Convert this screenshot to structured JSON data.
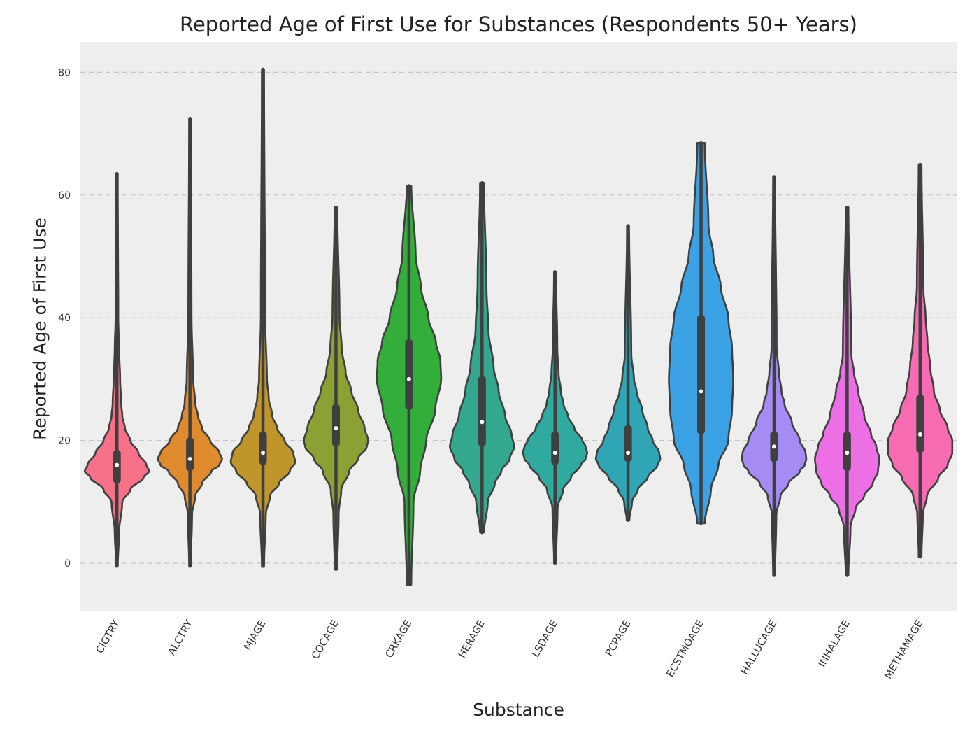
{
  "chart_data": {
    "type": "violin",
    "title": "Reported Age of First Use for Substances (Respondents 50+ Years)",
    "xlabel": "Substance",
    "ylabel": "Reported Age of First Use",
    "ylim": [
      -8,
      87
    ],
    "yticks": [
      0,
      20,
      40,
      60,
      80
    ],
    "grid": "horizontal-dashed",
    "categories": [
      "CIGTRY",
      "ALCTRY",
      "MJAGE",
      "COCAGE",
      "CRKAGE",
      "HERAGE",
      "LSDAGE",
      "PCPAGE",
      "ECSTMOAGE",
      "HALLUCAGE",
      "INHALAGE",
      "METHAMAGE"
    ],
    "colors": [
      "#f77189",
      "#e08a2e",
      "#c0962c",
      "#8ba133",
      "#34ae3a",
      "#33a88e",
      "#30a99f",
      "#30a5b5",
      "#3ba2e6",
      "#a48cf4",
      "#ec6fe6",
      "#f66bb2"
    ],
    "series": [
      {
        "min": -0.5,
        "q1": 13,
        "median": 16,
        "q3": 18.5,
        "max": 63.5
      },
      {
        "min": -0.5,
        "q1": 15,
        "median": 17,
        "q3": 20.5,
        "max": 72.5
      },
      {
        "min": -0.5,
        "q1": 16,
        "median": 18,
        "q3": 21.5,
        "max": 80.5
      },
      {
        "min": -1,
        "q1": 19,
        "median": 22,
        "q3": 26,
        "max": 58
      },
      {
        "min": -3.5,
        "q1": 25,
        "median": 30,
        "q3": 36.5,
        "max": 61.5
      },
      {
        "min": 5,
        "q1": 19,
        "median": 23,
        "q3": 30.5,
        "max": 62
      },
      {
        "min": 0,
        "q1": 16,
        "median": 18,
        "q3": 21.5,
        "max": 47.5
      },
      {
        "min": 7,
        "q1": 16.5,
        "median": 18,
        "q3": 22.5,
        "max": 55
      },
      {
        "min": 6.5,
        "q1": 21,
        "median": 28,
        "q3": 40.5,
        "max": 68.5
      },
      {
        "min": -2,
        "q1": 16.5,
        "median": 19,
        "q3": 21.5,
        "max": 63
      },
      {
        "min": -2,
        "q1": 15,
        "median": 18,
        "q3": 21.5,
        "max": 58
      },
      {
        "min": 1,
        "q1": 18,
        "median": 21,
        "q3": 27.5,
        "max": 65
      }
    ],
    "density_profiles": [
      [
        [
          -0.5,
          0.3
        ],
        [
          5,
          0.8
        ],
        [
          10,
          2
        ],
        [
          12,
          5
        ],
        [
          14,
          10
        ],
        [
          15,
          12
        ],
        [
          16,
          11
        ],
        [
          18,
          8
        ],
        [
          20,
          5
        ],
        [
          22,
          3
        ],
        [
          24,
          2
        ],
        [
          26,
          1.6
        ],
        [
          30,
          1.2
        ],
        [
          35,
          0.8
        ],
        [
          40,
          0.5
        ],
        [
          63.5,
          0.3
        ]
      ],
      [
        [
          -0.5,
          0.3
        ],
        [
          8,
          0.8
        ],
        [
          11,
          2
        ],
        [
          13,
          4.5
        ],
        [
          15,
          8
        ],
        [
          16,
          11
        ],
        [
          17,
          12
        ],
        [
          18,
          11
        ],
        [
          20,
          7.5
        ],
        [
          22,
          4.5
        ],
        [
          24,
          3
        ],
        [
          26,
          2
        ],
        [
          30,
          1.2
        ],
        [
          40,
          0.6
        ],
        [
          72.5,
          0.3
        ]
      ],
      [
        [
          -0.5,
          0.3
        ],
        [
          8,
          0.8
        ],
        [
          11,
          2
        ],
        [
          13,
          4.5
        ],
        [
          15,
          7.5
        ],
        [
          16.5,
          9
        ],
        [
          18,
          8.5
        ],
        [
          20,
          6
        ],
        [
          22,
          4
        ],
        [
          24,
          2.6
        ],
        [
          27,
          1.6
        ],
        [
          30,
          1.1
        ],
        [
          40,
          0.6
        ],
        [
          80.5,
          0.3
        ]
      ],
      [
        [
          -1,
          0.3
        ],
        [
          8,
          0.6
        ],
        [
          12,
          1.2
        ],
        [
          15,
          3
        ],
        [
          17,
          5
        ],
        [
          19,
          7
        ],
        [
          20,
          7.3
        ],
        [
          22,
          6.5
        ],
        [
          25,
          5
        ],
        [
          28,
          3.5
        ],
        [
          31,
          2.2
        ],
        [
          35,
          1.3
        ],
        [
          40,
          0.8
        ],
        [
          58,
          0.3
        ]
      ],
      [
        [
          -3.5,
          0.3
        ],
        [
          10,
          0.6
        ],
        [
          15,
          1.5
        ],
        [
          20,
          2.3
        ],
        [
          25,
          3.5
        ],
        [
          30,
          4.3
        ],
        [
          33,
          4.2
        ],
        [
          36,
          3.6
        ],
        [
          40,
          2.6
        ],
        [
          45,
          1.6
        ],
        [
          50,
          0.9
        ],
        [
          61.5,
          0.3
        ]
      ],
      [
        [
          5,
          0.3
        ],
        [
          10,
          0.9
        ],
        [
          13,
          2
        ],
        [
          15,
          3
        ],
        [
          17,
          4.3
        ],
        [
          19,
          5
        ],
        [
          21,
          4.6
        ],
        [
          24,
          3.6
        ],
        [
          28,
          2.6
        ],
        [
          32,
          1.8
        ],
        [
          38,
          1
        ],
        [
          45,
          0.7
        ],
        [
          62,
          0.3
        ]
      ],
      [
        [
          0,
          0.3
        ],
        [
          9,
          0.8
        ],
        [
          12,
          2.5
        ],
        [
          14,
          5
        ],
        [
          16,
          8
        ],
        [
          17,
          9.5
        ],
        [
          18,
          10
        ],
        [
          19,
          9.5
        ],
        [
          20,
          8.5
        ],
        [
          22,
          6
        ],
        [
          24,
          4
        ],
        [
          26,
          2.6
        ],
        [
          28,
          1.8
        ],
        [
          31,
          1.1
        ],
        [
          35,
          0.7
        ],
        [
          47.5,
          0.3
        ]
      ],
      [
        [
          7,
          0.4
        ],
        [
          10,
          1.2
        ],
        [
          12,
          3
        ],
        [
          14,
          6
        ],
        [
          16,
          9
        ],
        [
          17,
          9.8
        ],
        [
          18,
          9.5
        ],
        [
          20,
          7.5
        ],
        [
          22,
          6
        ],
        [
          25,
          4.3
        ],
        [
          28,
          2.6
        ],
        [
          30,
          1.8
        ],
        [
          34,
          1
        ],
        [
          55,
          0.3
        ]
      ],
      [
        [
          6.5,
          0.3
        ],
        [
          12,
          0.8
        ],
        [
          16,
          1.4
        ],
        [
          20,
          2.2
        ],
        [
          25,
          2.5
        ],
        [
          30,
          2.6
        ],
        [
          35,
          2.5
        ],
        [
          40,
          2.2
        ],
        [
          45,
          1.6
        ],
        [
          50,
          1
        ],
        [
          55,
          0.6
        ],
        [
          68.5,
          0.3
        ]
      ],
      [
        [
          -2,
          0.3
        ],
        [
          8,
          0.7
        ],
        [
          11,
          2
        ],
        [
          13,
          4.5
        ],
        [
          15,
          8
        ],
        [
          16,
          9.5
        ],
        [
          17,
          10
        ],
        [
          18,
          9.8
        ],
        [
          20,
          8
        ],
        [
          23,
          5.5
        ],
        [
          26,
          3.2
        ],
        [
          28,
          2.3
        ],
        [
          31,
          1.5
        ],
        [
          35,
          0.8
        ],
        [
          63,
          0.3
        ]
      ],
      [
        [
          -2,
          0.3
        ],
        [
          6,
          0.8
        ],
        [
          9,
          2
        ],
        [
          11,
          4
        ],
        [
          13,
          6
        ],
        [
          15,
          7.2
        ],
        [
          17,
          7.5
        ],
        [
          19,
          6.8
        ],
        [
          21,
          5.6
        ],
        [
          24,
          4
        ],
        [
          28,
          2.6
        ],
        [
          31,
          1.6
        ],
        [
          34,
          1
        ],
        [
          58,
          0.3
        ]
      ],
      [
        [
          1,
          0.3
        ],
        [
          8,
          0.6
        ],
        [
          11,
          1.5
        ],
        [
          14,
          4
        ],
        [
          16,
          6
        ],
        [
          18,
          7
        ],
        [
          20,
          7
        ],
        [
          22,
          6
        ],
        [
          25,
          4.3
        ],
        [
          28,
          3
        ],
        [
          32,
          2.2
        ],
        [
          36,
          1.6
        ],
        [
          40,
          1.2
        ],
        [
          45,
          0.7
        ],
        [
          65,
          0.3
        ]
      ]
    ]
  }
}
